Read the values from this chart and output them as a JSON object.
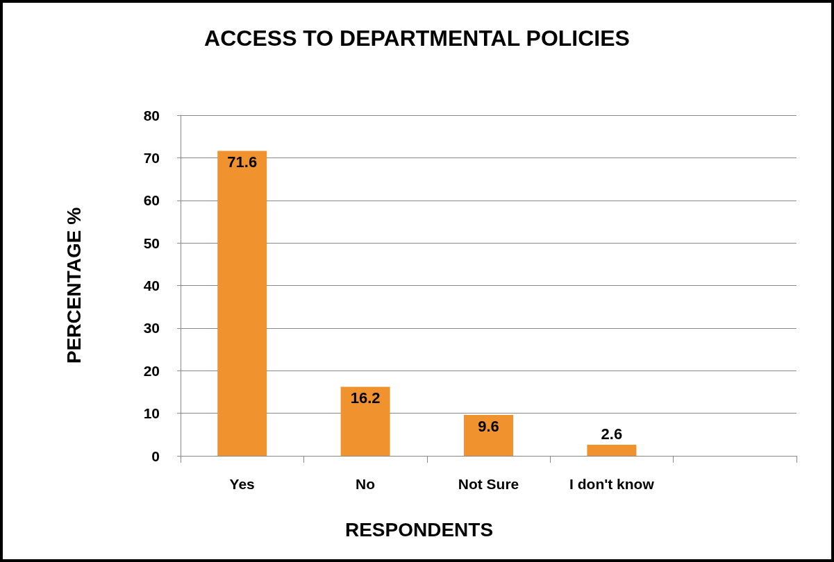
{
  "chart_data": {
    "type": "bar",
    "title": "ACCESS TO DEPARTMENTAL POLICIES",
    "xlabel": "RESPONDENTS",
    "ylabel": "PERCENTAGE %",
    "categories": [
      "Yes",
      "No",
      "Not Sure",
      "I don't know",
      null
    ],
    "values": [
      71.6,
      16.2,
      9.6,
      2.6,
      null
    ],
    "color": "#f0922e",
    "data_labels": true,
    "grid": "y",
    "ylim": [
      0,
      80
    ],
    "yticks": [
      0,
      10,
      20,
      30,
      40,
      50,
      60,
      70,
      80
    ]
  }
}
